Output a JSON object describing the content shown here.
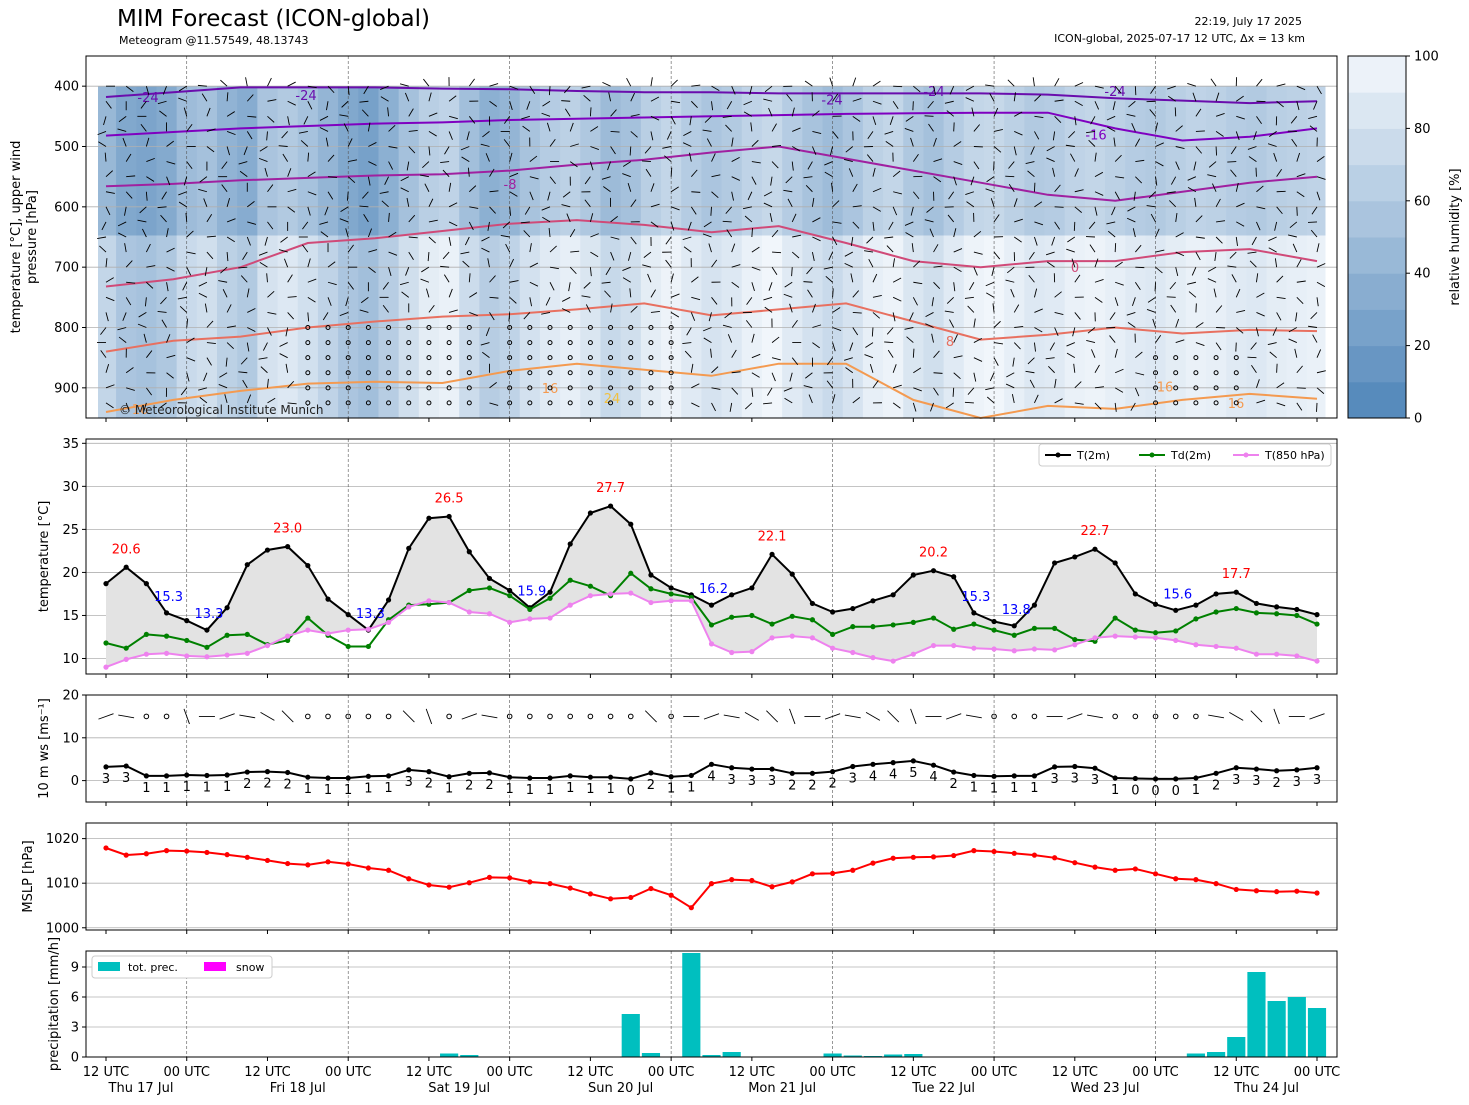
{
  "header": {
    "title": "MIM Forecast (ICON-global)",
    "subtitle": "Meteogram @11.57549, 48.13743",
    "issued": "22:19, July 17 2025",
    "run_info": "ICON-global, 2025-07-17 12 UTC, Δx = 13 km",
    "copyright": "© Meteorological Institute Munich"
  },
  "colors": {
    "t2m": "#000000",
    "td2m": "#008000",
    "t850": "#ee82ee",
    "mslp": "#ff0000",
    "precip": "#00bfbf",
    "snow": "#ff00ff",
    "max_label": "#ff0000",
    "min_label": "#0000ff",
    "humidity_dark": "#4f85b9",
    "humidity_light": "#f4f8fc"
  },
  "chart_data": [
    {
      "id": "upper",
      "type": "heatmap",
      "ylabel": "temperature [°C], upper wind\npressure [hPa]",
      "yticks": [
        400,
        500,
        600,
        700,
        800,
        900
      ],
      "ylim": [
        950,
        350
      ],
      "colorbar": {
        "label": "relative humidity [%]",
        "ticks": [
          0,
          20,
          40,
          60,
          80,
          100
        ],
        "range": [
          0,
          100
        ]
      },
      "humidity_columns": [
        62,
        48,
        45,
        50,
        66,
        70,
        58,
        52,
        73,
        78,
        71,
        60,
        48,
        42,
        55,
        70,
        82,
        86,
        68,
        55,
        60,
        72,
        80,
        84,
        76,
        65,
        70,
        82,
        88,
        80,
        74,
        78,
        86,
        90,
        80,
        72,
        66,
        74,
        84,
        88,
        76,
        70,
        80,
        88,
        90,
        84,
        78,
        80,
        86,
        88,
        84,
        80,
        78,
        82,
        86,
        84,
        80,
        78,
        82,
        84,
        86
      ],
      "isotherm_labels": [
        "-24",
        "-24",
        "-24",
        "-24",
        "-24",
        "-16",
        "-8",
        "0",
        "8",
        "16",
        "16",
        "16",
        "16",
        "24"
      ]
    },
    {
      "id": "temperature",
      "type": "line",
      "ylabel": "temperature [°C]",
      "yticks": [
        10,
        15,
        20,
        25,
        30,
        35
      ],
      "ylim": [
        8.2,
        35.5
      ],
      "legend": "top-right",
      "series": [
        {
          "name": "T(2m)",
          "values": [
            18.7,
            20.6,
            18.7,
            15.3,
            14.4,
            13.3,
            15.9,
            20.9,
            22.6,
            23.0,
            20.8,
            16.9,
            15.1,
            13.3,
            16.8,
            22.8,
            26.3,
            26.5,
            22.4,
            19.3,
            17.9,
            15.9,
            17.7,
            23.3,
            26.9,
            27.7,
            25.6,
            19.7,
            18.2,
            17.4,
            16.2,
            17.4,
            18.2,
            22.1,
            19.8,
            16.4,
            15.4,
            15.8,
            16.7,
            17.4,
            19.7,
            20.2,
            19.5,
            15.3,
            14.3,
            13.8,
            16.2,
            21.1,
            21.8,
            22.7,
            21.1,
            17.5,
            16.3,
            15.6,
            16.2,
            17.5,
            17.7,
            16.4,
            16.0,
            15.7,
            15.1
          ]
        },
        {
          "name": "Td(2m)",
          "values": [
            11.8,
            11.2,
            12.8,
            12.6,
            12.1,
            11.3,
            12.7,
            12.8,
            11.6,
            12.1,
            14.7,
            12.7,
            11.4,
            11.4,
            14.5,
            16.2,
            16.3,
            16.5,
            17.9,
            18.2,
            17.3,
            15.7,
            17.0,
            19.1,
            18.4,
            17.3,
            19.9,
            18.1,
            17.5,
            17.1,
            13.9,
            14.8,
            15.0,
            14.0,
            14.9,
            14.5,
            12.8,
            13.7,
            13.7,
            13.9,
            14.2,
            14.7,
            13.4,
            14.0,
            13.3,
            12.7,
            13.5,
            13.5,
            12.2,
            12.0,
            14.7,
            13.3,
            13.0,
            13.2,
            14.6,
            15.4,
            15.8,
            15.3,
            15.2,
            15.0,
            14.0
          ]
        },
        {
          "name": "T(850 hPa)",
          "values": [
            9.0,
            9.9,
            10.5,
            10.6,
            10.3,
            10.2,
            10.4,
            10.6,
            11.5,
            12.6,
            13.3,
            12.9,
            13.3,
            13.4,
            14.2,
            16.0,
            16.7,
            16.5,
            15.4,
            15.2,
            14.2,
            14.6,
            14.7,
            16.2,
            17.3,
            17.5,
            17.6,
            16.5,
            16.7,
            16.7,
            11.7,
            10.7,
            10.8,
            12.4,
            12.6,
            12.4,
            11.2,
            10.7,
            10.1,
            9.7,
            10.5,
            11.5,
            11.5,
            11.2,
            11.1,
            10.9,
            11.1,
            11.0,
            11.6,
            12.4,
            12.6,
            12.5,
            12.4,
            12.1,
            11.6,
            11.4,
            11.2,
            10.5,
            10.5,
            10.3,
            9.7
          ]
        }
      ],
      "annotations_max": [
        {
          "i": 1,
          "label": "20.6"
        },
        {
          "i": 9,
          "label": "23.0"
        },
        {
          "i": 17,
          "label": "26.5"
        },
        {
          "i": 25,
          "label": "27.7"
        },
        {
          "i": 33,
          "label": "22.1"
        },
        {
          "i": 41,
          "label": "20.2"
        },
        {
          "i": 49,
          "label": "22.7"
        },
        {
          "i": 56,
          "label": "17.7"
        }
      ],
      "annotations_min": [
        {
          "i": 3,
          "label": "15.3"
        },
        {
          "i": 5,
          "label": "13.3"
        },
        {
          "i": 13,
          "label": "13.3"
        },
        {
          "i": 21,
          "label": "15.9"
        },
        {
          "i": 30,
          "label": "16.2"
        },
        {
          "i": 43,
          "label": "15.3"
        },
        {
          "i": 45,
          "label": "13.8"
        },
        {
          "i": 53,
          "label": "15.6"
        }
      ]
    },
    {
      "id": "wind10m",
      "type": "line",
      "ylabel": "10 m ws [ms⁻¹]",
      "yticks": [
        0,
        10,
        20
      ],
      "ylim": [
        -5,
        20
      ],
      "values": [
        3.2,
        3.4,
        1.1,
        1.1,
        1.3,
        1.2,
        1.3,
        2.0,
        2.1,
        1.9,
        0.8,
        0.6,
        0.6,
        1.0,
        1.1,
        2.5,
        2.1,
        0.9,
        1.7,
        1.8,
        0.8,
        0.6,
        0.6,
        1.1,
        0.8,
        0.8,
        0.4,
        1.8,
        0.9,
        1.2,
        3.8,
        3.0,
        2.7,
        2.7,
        1.7,
        1.7,
        2.1,
        3.3,
        3.8,
        4.2,
        4.6,
        3.6,
        2.0,
        1.2,
        1.0,
        1.1,
        1.1,
        3.2,
        3.3,
        2.9,
        0.6,
        0.5,
        0.4,
        0.4,
        0.6,
        1.7,
        3.0,
        2.7,
        2.3,
        2.5,
        3.0
      ],
      "labels": [
        "3",
        "3",
        "1",
        "1",
        "1",
        "1",
        "1",
        "2",
        "2",
        "2",
        "1",
        "1",
        "1",
        "1",
        "1",
        "3",
        "2",
        "1",
        "2",
        "2",
        "1",
        "1",
        "1",
        "1",
        "1",
        "1",
        "0",
        "2",
        "1",
        "1",
        "4",
        "3",
        "3",
        "3",
        "2",
        "2",
        "2",
        "3",
        "4",
        "4",
        "5",
        "4",
        "2",
        "1",
        "1",
        "1",
        "1",
        "3",
        "3",
        "3",
        "1",
        "0",
        "0",
        "0",
        "1",
        "2",
        "3",
        "3",
        "2",
        "3",
        "3"
      ]
    },
    {
      "id": "mslp",
      "type": "line",
      "ylabel": "MSLP [hPa]",
      "yticks": [
        1000,
        1010,
        1020
      ],
      "ylim": [
        999.5,
        1023.5
      ],
      "values": [
        1017.9,
        1016.3,
        1016.6,
        1017.3,
        1017.2,
        1016.9,
        1016.4,
        1015.8,
        1015.1,
        1014.4,
        1014.1,
        1014.8,
        1014.3,
        1013.4,
        1012.9,
        1011.0,
        1009.6,
        1009.1,
        1010.1,
        1011.3,
        1011.2,
        1010.3,
        1009.9,
        1008.9,
        1007.6,
        1006.5,
        1006.8,
        1008.8,
        1007.3,
        1004.5,
        1009.9,
        1010.8,
        1010.6,
        1009.2,
        1010.3,
        1012.1,
        1012.2,
        1012.9,
        1014.5,
        1015.6,
        1015.8,
        1015.9,
        1016.2,
        1017.3,
        1017.1,
        1016.7,
        1016.3,
        1015.7,
        1014.6,
        1013.6,
        1012.9,
        1013.2,
        1012.1,
        1011.0,
        1010.8,
        1009.9,
        1008.6,
        1008.3,
        1008.1,
        1008.2,
        1007.8
      ]
    },
    {
      "id": "precip",
      "type": "bar",
      "ylabel": "precipitation [mm/h]",
      "yticks": [
        0,
        3,
        6,
        9
      ],
      "ylim": [
        0,
        10.6
      ],
      "legend": "top-left",
      "series": [
        {
          "name": "tot. prec.",
          "values": [
            0,
            0,
            0,
            0,
            0,
            0,
            0,
            0,
            0,
            0,
            0,
            0,
            0,
            0,
            0,
            0,
            0.05,
            0.35,
            0.2,
            0,
            0,
            0,
            0,
            0,
            0.05,
            0.05,
            4.3,
            0.4,
            0,
            10.4,
            0.2,
            0.5,
            0.02,
            0.05,
            0,
            0,
            0.35,
            0.15,
            0.1,
            0.25,
            0.3,
            0.05,
            0,
            0,
            0,
            0,
            0,
            0.05,
            0,
            0,
            0,
            0,
            0,
            0.05,
            0.35,
            0.5,
            2.0,
            8.5,
            5.6,
            6.0,
            4.9
          ]
        },
        {
          "name": "snow",
          "values": []
        }
      ]
    }
  ],
  "time_axis": {
    "n_steps": 61,
    "tick_labels": [
      "12 UTC",
      "00 UTC",
      "12 UTC",
      "00 UTC",
      "12 UTC",
      "00 UTC",
      "12 UTC",
      "00 UTC",
      "12 UTC",
      "00 UTC",
      "12 UTC",
      "00 UTC",
      "12 UTC",
      "00 UTC",
      "12 UTC",
      "00 UTC"
    ],
    "day_labels": [
      "Thu 17 Jul",
      "Fri 18 Jul",
      "Sat 19 Jul",
      "Sun 20 Jul",
      "Mon 21 Jul",
      "Tue 22 Jul",
      "Wed 23 Jul",
      "Thu 24 Jul"
    ]
  }
}
